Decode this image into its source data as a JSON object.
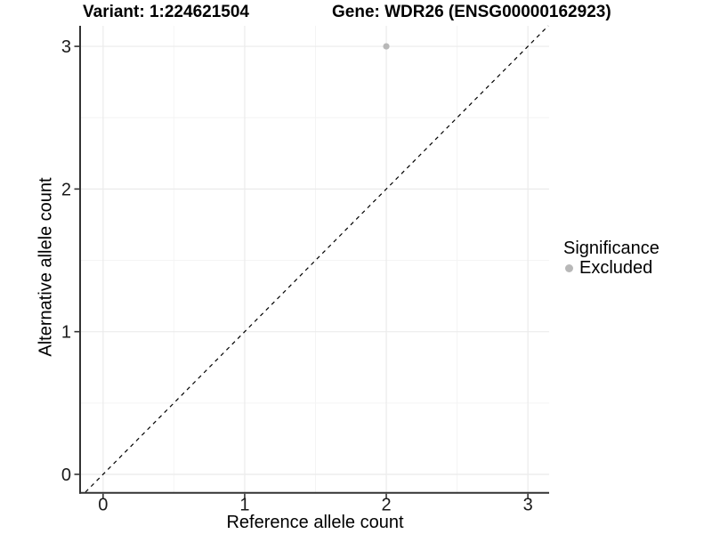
{
  "chart_data": {
    "type": "scatter",
    "title_left": "Variant: 1:224621504",
    "title_right": "Gene: WDR26 (ENSG00000162923)",
    "xlabel": "Reference allele count",
    "ylabel": "Alternative allele count",
    "x_ticks": [
      0,
      1,
      2,
      3
    ],
    "y_ticks": [
      0,
      1,
      2,
      3
    ],
    "x_minor_ticks": [
      0.5,
      1.5,
      2.5
    ],
    "y_minor_ticks": [
      0.5,
      1.5,
      2.5
    ],
    "xlim": [
      -0.156,
      3.15
    ],
    "ylim": [
      -0.125,
      3.144
    ],
    "grid": "major+minor",
    "legend_position": "right",
    "reference_line": {
      "type": "identity",
      "slope": 1,
      "intercept": 0,
      "style": "dashed",
      "color": "#000000"
    },
    "series": [
      {
        "name": "Excluded",
        "color": "#b8b8b8",
        "points": [
          {
            "x": 2,
            "y": 3
          }
        ]
      }
    ],
    "legend": {
      "title": "Significance",
      "entries": [
        {
          "label": "Excluded",
          "color": "#b8b8b8"
        }
      ]
    },
    "colors": {
      "background": "#ffffff",
      "grid_major": "#ebebeb",
      "grid_minor": "#f4f4f4",
      "axis": "#333333",
      "tick_label": "#1a1a1a"
    }
  }
}
